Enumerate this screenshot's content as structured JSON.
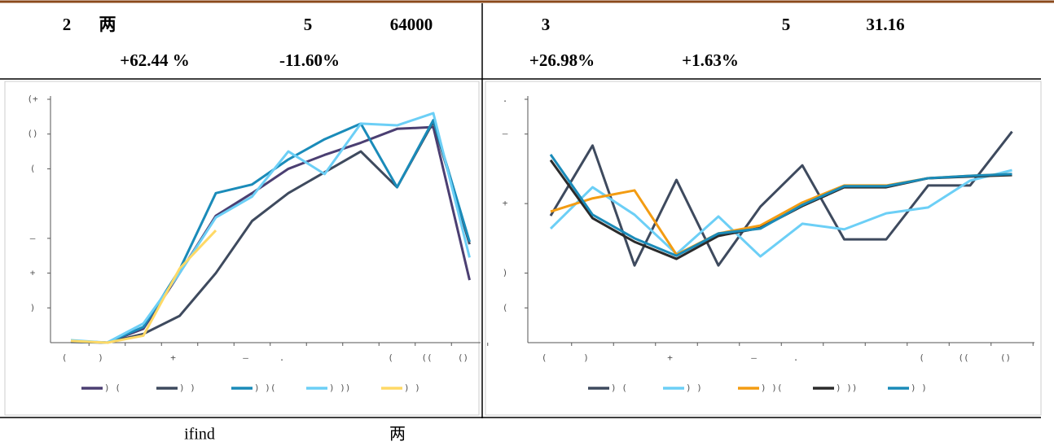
{
  "summary": {
    "left": {
      "line1": [
        "2",
        "两",
        "5",
        "64000"
      ],
      "line2": [
        "+62.44 %",
        "-11.60%"
      ]
    },
    "right": {
      "line1": [
        "3",
        "5",
        "31.16"
      ],
      "line2": [
        "+26.98%",
        "+1.63%"
      ]
    }
  },
  "footer": [
    "ifind",
    "两"
  ],
  "chart_data": [
    {
      "type": "line",
      "categories": [
        "(",
        ")",
        null,
        "+",
        null,
        "–",
        ".",
        null,
        null,
        "(",
        "((",
        "()"
      ],
      "ylim": [
        0,
        7
      ],
      "yticks": [
        {
          "value": 7,
          "label": "(+"
        },
        {
          "value": 6,
          "label": "()"
        },
        {
          "value": 5,
          "label": "("
        },
        {
          "value": 3,
          "label": "–"
        },
        {
          "value": 2,
          "label": "+"
        },
        {
          "value": 1,
          "label": ")"
        }
      ],
      "series": [
        {
          "name": ") (",
          "color": "#4b3f72",
          "values": [
            0.05,
            0,
            0.4,
            2.0,
            3.65,
            4.3,
            5.0,
            5.4,
            5.75,
            6.15,
            6.2,
            1.8
          ]
        },
        {
          "name": ") )",
          "color": "#3e4a5e",
          "values": [
            0.02,
            0,
            0.25,
            0.77,
            2.0,
            3.5,
            4.3,
            4.9,
            5.5,
            4.47,
            6.35,
            2.83
          ]
        },
        {
          "name": ") )(",
          "color": "#1a8bb9",
          "values": [
            0.05,
            0,
            0.45,
            2.1,
            4.3,
            4.55,
            5.27,
            5.85,
            6.3,
            4.47,
            6.4,
            2.9
          ]
        },
        {
          "name": ") ))",
          "color": "#6ccff6",
          "values": [
            0.07,
            0,
            0.55,
            2.0,
            3.6,
            4.2,
            5.5,
            4.85,
            6.3,
            6.25,
            6.6,
            2.45
          ]
        },
        {
          "name": ") )",
          "color": "#ffd966",
          "values": [
            0.05,
            0,
            0.2,
            2.13,
            3.23,
            null,
            null,
            null,
            null,
            null,
            null,
            null
          ]
        }
      ]
    },
    {
      "type": "line",
      "categories": [
        "(",
        ")",
        null,
        "+",
        null,
        "–",
        ".",
        null,
        null,
        "(",
        "((",
        "()"
      ],
      "ylim": [
        0,
        7
      ],
      "yticks": [
        {
          "value": 7,
          "label": "."
        },
        {
          "value": 6,
          "label": "–"
        },
        {
          "value": 4,
          "label": "+"
        },
        {
          "value": 2,
          "label": ")"
        },
        {
          "value": 1,
          "label": "("
        }
      ],
      "series": [
        {
          "name": ") (",
          "color": "#3e4a5e",
          "values": [
            3.65,
            5.67,
            2.22,
            4.68,
            2.22,
            3.91,
            5.1,
            2.97,
            2.97,
            4.52,
            4.52,
            6.07
          ]
        },
        {
          "name": ") )",
          "color": "#6ccff6",
          "values": [
            3.28,
            4.47,
            3.68,
            2.55,
            3.63,
            2.48,
            3.42,
            3.26,
            3.72,
            3.89,
            4.66,
            4.96
          ]
        },
        {
          "name": ") )(",
          "color": "#f39c12",
          "values": [
            3.77,
            4.15,
            4.38,
            2.53,
            3.14,
            3.37,
            4.03,
            4.52,
            4.52,
            4.73,
            4.8,
            4.85
          ]
        },
        {
          "name": ") ))",
          "color": "#2b2b2b",
          "values": [
            5.25,
            3.58,
            2.9,
            2.41,
            3.07,
            3.3,
            3.93,
            4.47,
            4.47,
            4.73,
            4.78,
            4.82
          ]
        },
        {
          "name": ") )",
          "color": "#1a8bb9",
          "values": [
            5.41,
            3.68,
            3.0,
            2.5,
            3.14,
            3.28,
            3.96,
            4.5,
            4.5,
            4.73,
            4.8,
            4.85
          ]
        }
      ]
    }
  ]
}
